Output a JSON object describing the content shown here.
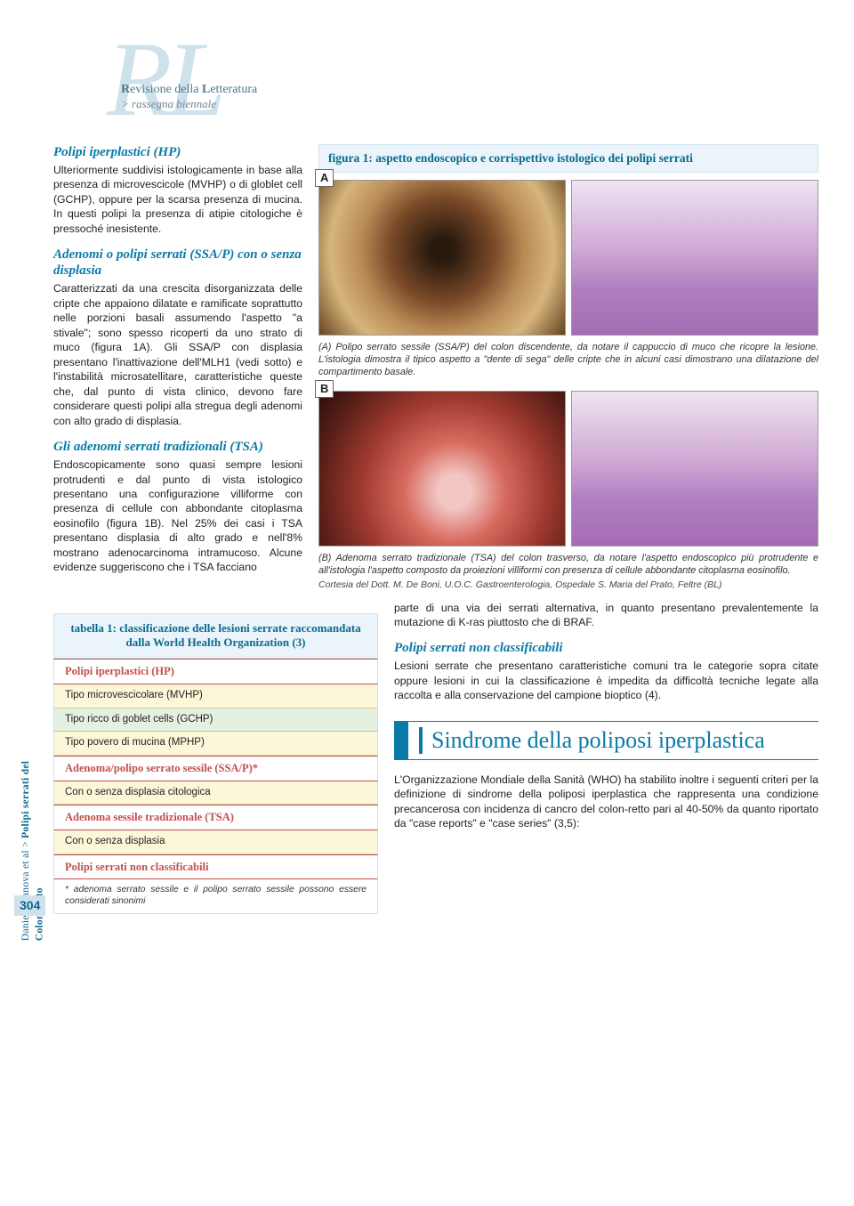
{
  "logo": {
    "big": "RL",
    "line1_plain1": "R",
    "line1_bold1": "evisione della ",
    "line1_plain2": "L",
    "line1_bold2": "etteratura",
    "line2": "> rassegna biennale"
  },
  "sidebar": {
    "authors": "Daniele Canova et al",
    "sep": " > ",
    "title": "Polipi serrati del Colon-retto",
    "page": "304"
  },
  "left": {
    "s1_title": "Polipi iperplastici (HP)",
    "s1_p": "Ulteriormente suddivisi istologicamente in base alla presenza di microvescicole (MVHP) o di globlet cell (GCHP), oppure per la scarsa presenza di mucina.\nIn questi polipi la presenza di atipie citologiche è pressoché inesistente.",
    "s2_title": "Adenomi o polipi serrati (SSA/P) con o senza displasia",
    "s2_p": "Caratterizzati da una crescita disorganizzata delle cripte che appaiono dilatate e ramificate soprattutto nelle porzioni basali assumendo l'aspetto \"a stivale\"; sono spesso ricoperti da uno strato di muco (figura 1A).\nGli SSA/P con displasia presentano l'inattivazione dell'MLH1 (vedi sotto) e l'instabilità microsatellitare, caratteristiche queste che, dal punto di vista clinico, devono fare considerare questi polipi alla stregua degli adenomi con alto grado di displasia.",
    "s3_title": "Gli adenomi serrati tradizionali (TSA)",
    "s3_p1": "Endoscopicamente sono quasi sempre lesioni protrudenti e dal punto di vista istologico presentano una configurazione villiforme con presenza di cellule con abbondante citoplasma eosinofilo (figura 1B).\nNel 25% dei casi i TSA presentano displasia di alto grado e nell'8% mostrano adenocarcinoma intramucoso. Alcune evidenze suggeriscono che i TSA facciano"
  },
  "figure": {
    "bar": "figura 1: aspetto endoscopico e corrispettivo istologico dei polipi serrati",
    "labelA": "A",
    "labelB": "B",
    "descA": "(A) Polipo serrato sessile (SSA/P) del colon discendente, da notare il cappuccio di muco che ricopre la lesione. L'istologia dimostra il tipico aspetto a \"dente di sega\" delle cripte che in alcuni casi dimostrano una dilatazione del compartimento basale.",
    "descB": "(B) Adenoma serrato tradizionale (TSA) del colon trasverso, da notare l'aspetto endoscopico più protrudente e all'istologia l'aspetto composto da proiezioni villiformi con presenza di cellule abbondante citoplasma eosinofilo.",
    "credit": "Cortesia del Dott. M. De Boni, U.O.C. Gastroenterologia, Ospedale S. Maria del Prato, Feltre (BL)"
  },
  "table": {
    "title": "tabella 1: classificazione delle lesioni serrate raccomandata dalla World Health Organization (3)",
    "rows": [
      {
        "t": "Polipi iperplastici (HP)",
        "cls": "tbl-header-cat"
      },
      {
        "t": "Tipo microvescicolare (MVHP)",
        "cls": "tbl-sub-b"
      },
      {
        "t": "Tipo ricco di goblet cells (GCHP)",
        "cls": "tbl-sub-g"
      },
      {
        "t": "Tipo povero di mucina (MPHP)",
        "cls": "tbl-sub-b"
      },
      {
        "t": "Adenoma/polipo serrato sessile (SSA/P)*",
        "cls": "tbl-header-cat"
      },
      {
        "t": "Con o senza displasia citologica",
        "cls": "tbl-sub-b"
      },
      {
        "t": "Adenoma sessile tradizionale (TSA)",
        "cls": "tbl-header-cat"
      },
      {
        "t": "Con o senza displasia",
        "cls": "tbl-sub-b"
      },
      {
        "t": "Polipi serrati non classificabili",
        "cls": "tbl-header-cat"
      }
    ],
    "footnote": "* adenoma serrato sessile e il polipo serrato sessile possono essere considerati sinonimi"
  },
  "rightcol": {
    "p1": "parte di una via dei serrati alternativa, in quanto presentano prevalentemente la mutazione di K-ras piuttosto che di BRAF.",
    "s4_title": "Polipi serrati non classificabili",
    "s4_p": "Lesioni serrate che presentano caratteristiche comuni tra le categorie sopra citate oppure lesioni in cui la classificazione è impedita da difficoltà tecniche legate alla raccolta e alla conservazione del campione bioptico (4).",
    "big_title": "Sindrome della poliposi iperplastica",
    "p2": "L'Organizzazione Mondiale della Sanità (WHO) ha stabilito inoltre i seguenti criteri per la definizione di sindrome della poliposi iperplastica che rappresenta una condizione precancerosa con incidenza di cancro del colon-retto pari al 40-50% da quanto riportato da \"case reports\" e \"case series\" (3,5):"
  },
  "colors": {
    "accent": "#0a7aa8",
    "accent_light": "#cfe2ec",
    "panel_bg": "#eaf4fa",
    "cat_red": "#c0504d",
    "row_beige": "#fdf7d9",
    "row_green": "#e5f1e0"
  }
}
